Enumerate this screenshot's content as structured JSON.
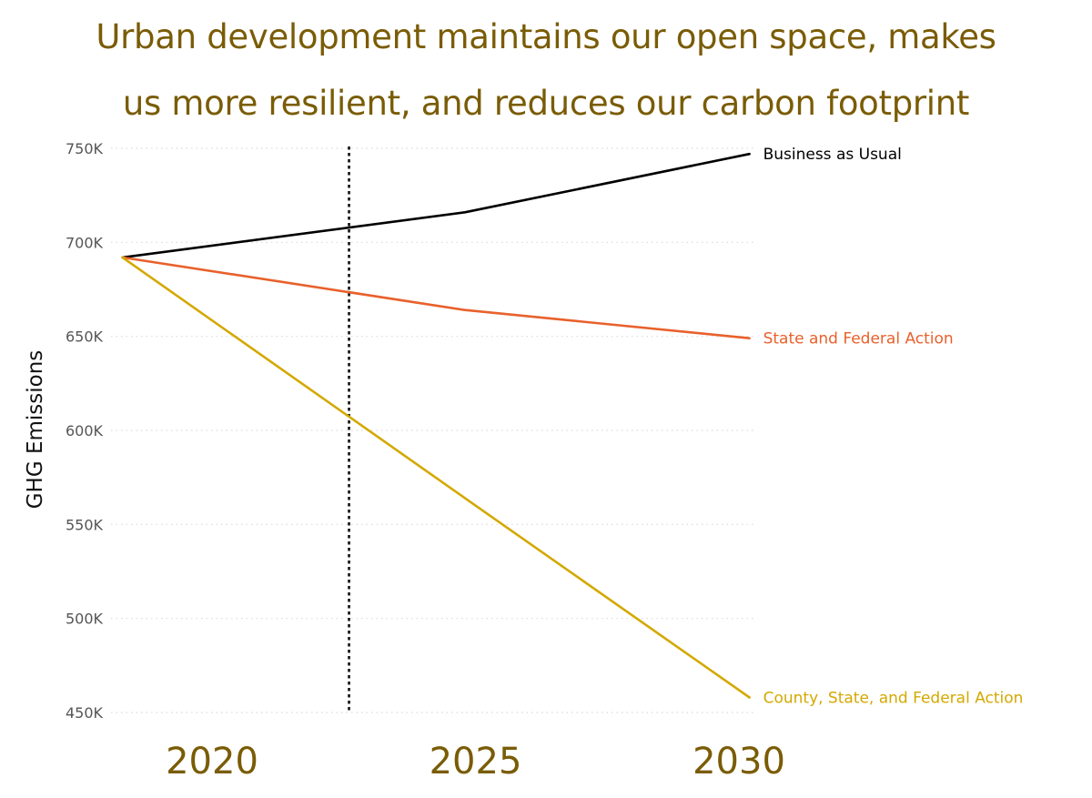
{
  "title_lines": [
    "Urban development maintains our open space, makes",
    "us more resilient, and reduces our carbon footprint"
  ],
  "colors": {
    "title": "#7a5c06",
    "grid": "#d9d9d9",
    "marker": "#111111"
  },
  "chart_data": {
    "type": "line",
    "title": "Urban development maintains our open space, makes us more resilient, and reduces our carbon footprint",
    "xlabel": "",
    "ylabel": "GHG Emissions",
    "x_ticks": [
      2020,
      2025,
      2030
    ],
    "x_tick_labels": [
      "2020",
      "2025",
      "2030"
    ],
    "xlim": [
      2018.3,
      2030.2
    ],
    "y_ticks": [
      450000,
      500000,
      550000,
      600000,
      650000,
      700000,
      750000
    ],
    "y_tick_labels": [
      "450K",
      "500K",
      "550K",
      "600K",
      "650K",
      "700K",
      "750K"
    ],
    "ylim": [
      450000,
      750000
    ],
    "grid": "horizontal-dotted",
    "legend": "direct-labels-right",
    "series": [
      {
        "name": "Business as Usual",
        "color": "#000000",
        "x": [
          2018.3,
          2024.8,
          2030.2
        ],
        "values": [
          692000,
          716000,
          747000
        ]
      },
      {
        "name": "State and Federal Action",
        "color": "#e8612c",
        "x": [
          2018.3,
          2024.8,
          2030.2
        ],
        "values": [
          692000,
          664000,
          649000
        ]
      },
      {
        "name": "County, State, and Federal Action",
        "color": "#d4a800",
        "x": [
          2018.3,
          2024.8,
          2030.2
        ],
        "values": [
          692000,
          564000,
          458000
        ]
      }
    ],
    "annotations": [
      {
        "type": "vertical-dotted-line",
        "x": 2022.6,
        "label": ""
      }
    ]
  }
}
